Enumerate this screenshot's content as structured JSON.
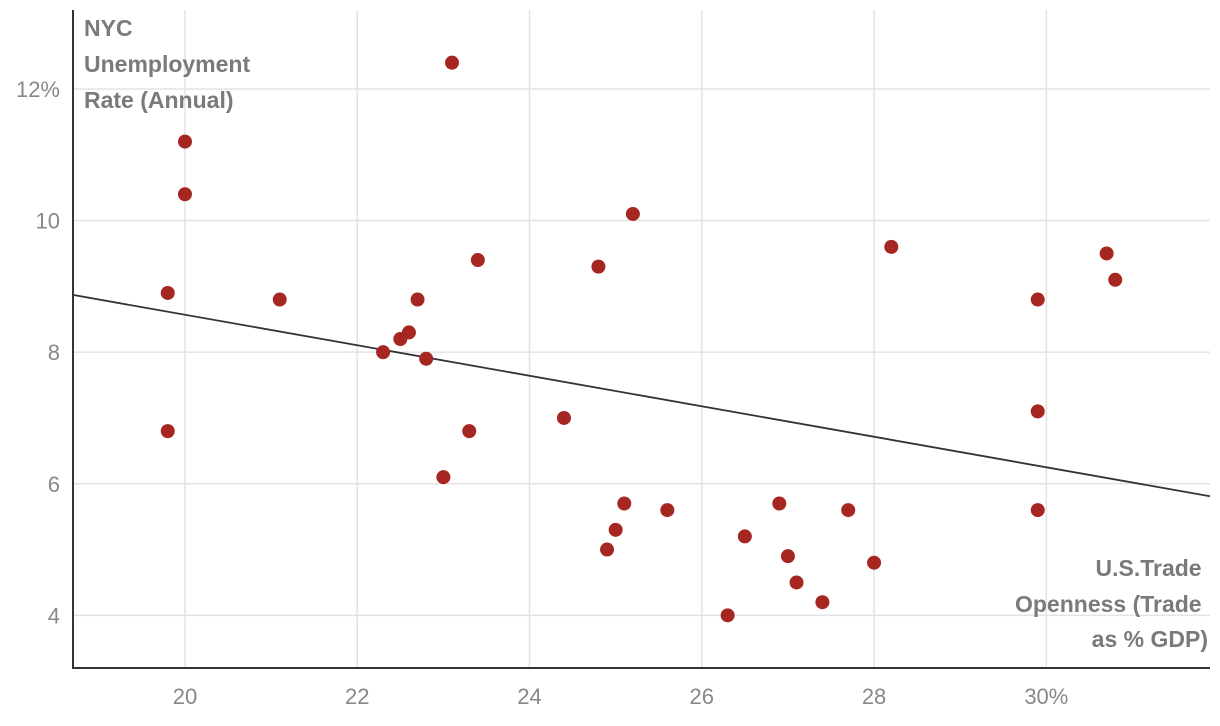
{
  "chart_data": {
    "type": "scatter",
    "ylabel_lines": [
      "NYC",
      "Unemployment",
      "Rate (Annual)"
    ],
    "xlabel_lines": [
      "U.S.Trade",
      "Openness (Trade",
      "as % GDP)"
    ],
    "x_ticks": [
      {
        "value": 20,
        "label": "20"
      },
      {
        "value": 22,
        "label": "22"
      },
      {
        "value": 24,
        "label": "24"
      },
      {
        "value": 26,
        "label": "26"
      },
      {
        "value": 28,
        "label": "28"
      },
      {
        "value": 30,
        "label": "30%"
      }
    ],
    "y_ticks": [
      {
        "value": 4,
        "label": "4"
      },
      {
        "value": 6,
        "label": "6"
      },
      {
        "value": 8,
        "label": "8"
      },
      {
        "value": 10,
        "label": "10"
      },
      {
        "value": 12,
        "label": "12%"
      }
    ],
    "xlim": [
      18.7,
      31.9
    ],
    "ylim": [
      3.2,
      13.2
    ],
    "grid": true,
    "point_color": "#a62622",
    "trend_color": "#333333",
    "trendline": {
      "x": [
        18.7,
        31.9
      ],
      "y": [
        8.87,
        5.81
      ]
    },
    "points": [
      {
        "x": 23.1,
        "y": 12.4
      },
      {
        "x": 20.0,
        "y": 11.2
      },
      {
        "x": 20.0,
        "y": 10.4
      },
      {
        "x": 25.2,
        "y": 10.1
      },
      {
        "x": 28.2,
        "y": 9.6
      },
      {
        "x": 30.7,
        "y": 9.5
      },
      {
        "x": 23.4,
        "y": 9.4
      },
      {
        "x": 24.8,
        "y": 9.3
      },
      {
        "x": 30.8,
        "y": 9.1
      },
      {
        "x": 19.8,
        "y": 8.9
      },
      {
        "x": 21.1,
        "y": 8.8
      },
      {
        "x": 22.7,
        "y": 8.8
      },
      {
        "x": 29.9,
        "y": 8.8
      },
      {
        "x": 22.6,
        "y": 8.3
      },
      {
        "x": 22.5,
        "y": 8.2
      },
      {
        "x": 22.3,
        "y": 8.0
      },
      {
        "x": 22.8,
        "y": 7.9
      },
      {
        "x": 29.9,
        "y": 7.1
      },
      {
        "x": 24.4,
        "y": 7.0
      },
      {
        "x": 19.8,
        "y": 6.8
      },
      {
        "x": 23.3,
        "y": 6.8
      },
      {
        "x": 23.0,
        "y": 6.1
      },
      {
        "x": 25.1,
        "y": 5.7
      },
      {
        "x": 26.9,
        "y": 5.7
      },
      {
        "x": 25.6,
        "y": 5.6
      },
      {
        "x": 27.7,
        "y": 5.6
      },
      {
        "x": 29.9,
        "y": 5.6
      },
      {
        "x": 25.0,
        "y": 5.3
      },
      {
        "x": 26.5,
        "y": 5.2
      },
      {
        "x": 24.9,
        "y": 5.0
      },
      {
        "x": 27.0,
        "y": 4.9
      },
      {
        "x": 28.0,
        "y": 4.8
      },
      {
        "x": 27.1,
        "y": 4.5
      },
      {
        "x": 27.4,
        "y": 4.2
      },
      {
        "x": 26.3,
        "y": 4.0
      }
    ]
  }
}
